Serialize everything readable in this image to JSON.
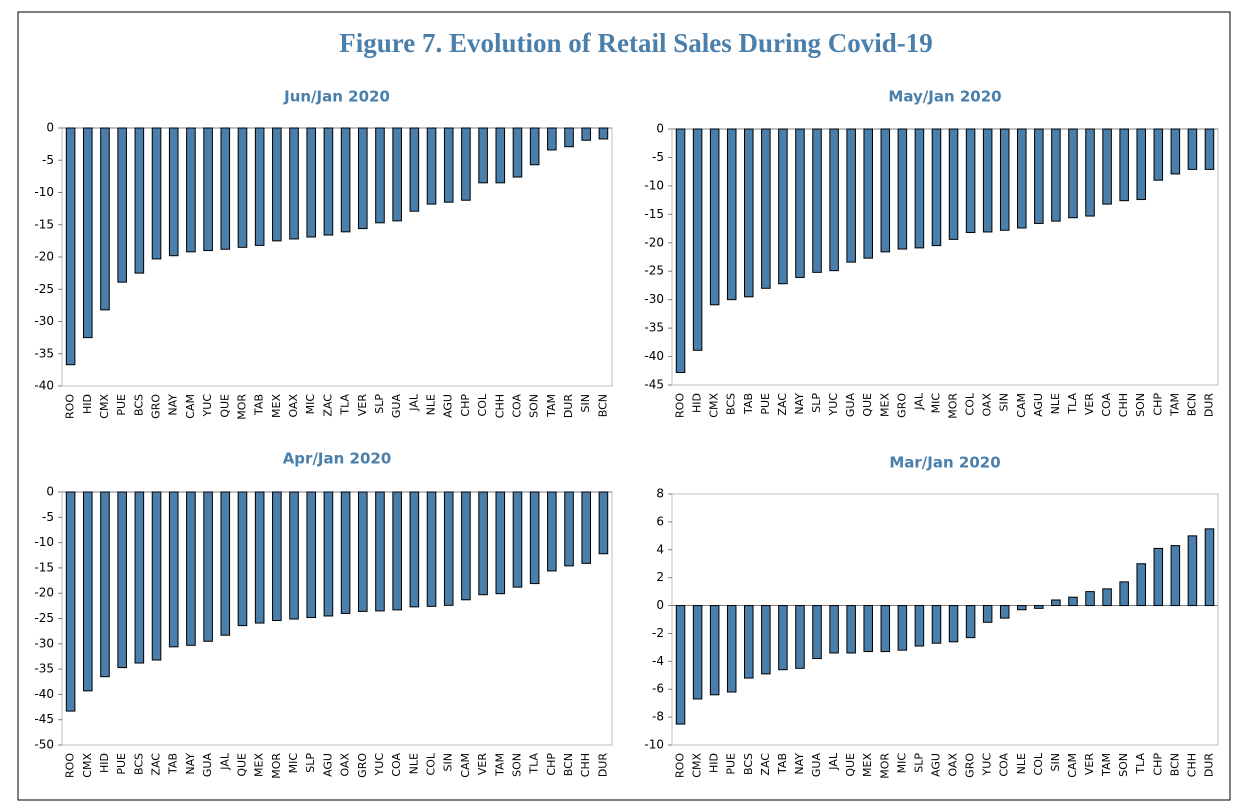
{
  "title": "Figure 7. Evolution of Retail Sales During Covid-19",
  "chart_data": [
    {
      "type": "bar",
      "title": "Jun/Jan 2020",
      "color": "#4a7eab",
      "categories": [
        "ROO",
        "HID",
        "CMX",
        "PUE",
        "BCS",
        "GRO",
        "NAY",
        "CAM",
        "YUC",
        "QUE",
        "MOR",
        "TAB",
        "MEX",
        "OAX",
        "MIC",
        "ZAC",
        "TLA",
        "VER",
        "SLP",
        "GUA",
        "JAL",
        "NLE",
        "AGU",
        "CHP",
        "COL",
        "CHH",
        "COA",
        "SON",
        "TAM",
        "DUR",
        "SIN",
        "BCN"
      ],
      "values": [
        -36.7,
        -32.5,
        -28.2,
        -23.9,
        -22.5,
        -20.3,
        -19.8,
        -19.2,
        -19,
        -18.8,
        -18.5,
        -18.2,
        -17.5,
        -17.2,
        -16.9,
        -16.6,
        -16.1,
        -15.6,
        -14.7,
        -14.4,
        -12.9,
        -11.8,
        -11.5,
        -11.2,
        -8.5,
        -8.5,
        -7.6,
        -5.7,
        -3.4,
        -2.9,
        -1.9,
        -1.7
      ],
      "ylim": [
        -40,
        0
      ],
      "yticks": [
        0,
        -5,
        -10,
        -15,
        -20,
        -25,
        -30,
        -35,
        -40
      ]
    },
    {
      "type": "bar",
      "title": "May/Jan 2020",
      "color": "#4a7eab",
      "categories": [
        "ROO",
        "HID",
        "CMX",
        "BCS",
        "TAB",
        "PUE",
        "ZAC",
        "NAY",
        "SLP",
        "YUC",
        "GUA",
        "QUE",
        "MEX",
        "GRO",
        "JAL",
        "MIC",
        "MOR",
        "COL",
        "OAX",
        "SIN",
        "CAM",
        "AGU",
        "NLE",
        "TLA",
        "VER",
        "COA",
        "CHH",
        "SON",
        "CHP",
        "TAM",
        "BCN",
        "DUR"
      ],
      "values": [
        -42.8,
        -38.9,
        -30.9,
        -30,
        -29.5,
        -28,
        -27.2,
        -26.1,
        -25.2,
        -24.9,
        -23.4,
        -22.7,
        -21.6,
        -21.1,
        -20.9,
        -20.5,
        -19.4,
        -18.2,
        -18.1,
        -17.8,
        -17.4,
        -16.6,
        -16.2,
        -15.6,
        -15.3,
        -13.2,
        -12.6,
        -12.4,
        -9,
        -7.9,
        -7.1,
        -7.1
      ],
      "ylim": [
        -45,
        0
      ],
      "yticks": [
        0,
        -5,
        -10,
        -15,
        -20,
        -25,
        -30,
        -35,
        -40,
        -45
      ]
    },
    {
      "type": "bar",
      "title": "Apr/Jan 2020",
      "color": "#4a7eab",
      "categories": [
        "ROO",
        "CMX",
        "HID",
        "PUE",
        "BCS",
        "ZAC",
        "TAB",
        "NAY",
        "GUA",
        "JAL",
        "QUE",
        "MEX",
        "MOR",
        "MIC",
        "SLP",
        "AGU",
        "OAX",
        "GRO",
        "YUC",
        "COA",
        "NLE",
        "COL",
        "SIN",
        "CAM",
        "VER",
        "TAM",
        "SON",
        "TLA",
        "CHP",
        "BCN",
        "CHH",
        "DUR"
      ],
      "values": [
        -43.3,
        -39.3,
        -36.5,
        -34.7,
        -33.8,
        -33.2,
        -30.6,
        -30.3,
        -29.5,
        -28.3,
        -26.4,
        -25.9,
        -25.4,
        -25.1,
        -24.8,
        -24.5,
        -24,
        -23.6,
        -23.5,
        -23.3,
        -22.7,
        -22.6,
        -22.4,
        -21.3,
        -20.3,
        -20.1,
        -18.8,
        -18.1,
        -15.6,
        -14.6,
        -14.1,
        -12.2
      ],
      "ylim": [
        -50,
        0
      ],
      "yticks": [
        0,
        -5,
        -10,
        -15,
        -20,
        -25,
        -30,
        -35,
        -40,
        -45,
        -50
      ]
    },
    {
      "type": "bar",
      "title": "Mar/Jan 2020",
      "color": "#4a7eab",
      "categories": [
        "ROO",
        "CMX",
        "HID",
        "PUE",
        "BCS",
        "ZAC",
        "TAB",
        "NAY",
        "GUA",
        "JAL",
        "QUE",
        "MEX",
        "MOR",
        "MIC",
        "SLP",
        "AGU",
        "OAX",
        "GRO",
        "YUC",
        "COA",
        "NLE",
        "COL",
        "SIN",
        "CAM",
        "VER",
        "TAM",
        "SON",
        "TLA",
        "CHP",
        "BCN",
        "CHH",
        "DUR"
      ],
      "values": [
        -8.5,
        -6.7,
        -6.4,
        -6.2,
        -5.2,
        -4.9,
        -4.6,
        -4.5,
        -3.8,
        -3.4,
        -3.4,
        -3.3,
        -3.3,
        -3.2,
        -2.9,
        -2.7,
        -2.6,
        -2.3,
        -1.2,
        -0.9,
        -0.3,
        -0.2,
        0.4,
        0.6,
        1,
        1.2,
        1.7,
        3,
        4.1,
        4.3,
        5,
        5.5
      ],
      "ylim": [
        -10,
        8
      ],
      "yticks": [
        8,
        6,
        4,
        2,
        0,
        -2,
        -4,
        -6,
        -8,
        -10
      ]
    }
  ]
}
